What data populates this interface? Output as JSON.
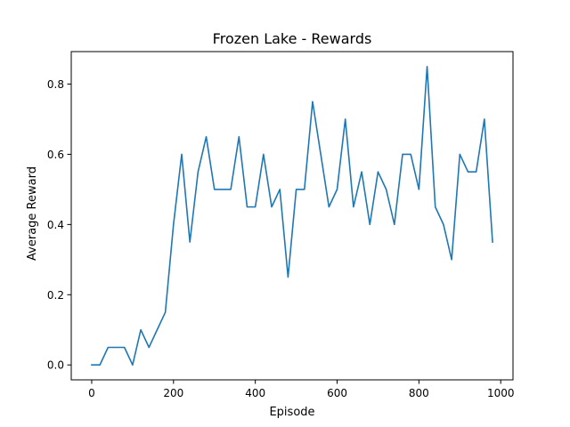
{
  "chart_data": {
    "type": "line",
    "title": "Frozen Lake - Rewards",
    "xlabel": "Episode",
    "ylabel": "Average Reward",
    "xlim": [
      -50,
      1030
    ],
    "ylim": [
      -0.0425,
      0.8925
    ],
    "xticks": [
      0,
      200,
      400,
      600,
      800,
      1000
    ],
    "xtick_labels": [
      "0",
      "200",
      "400",
      "600",
      "800",
      "1000"
    ],
    "yticks": [
      0.0,
      0.2,
      0.4,
      0.6,
      0.8
    ],
    "ytick_labels": [
      "0.0",
      "0.2",
      "0.4",
      "0.6",
      "0.8"
    ],
    "grid": false,
    "legend": "none",
    "series": [
      {
        "color": "#1f77b4",
        "x": [
          0,
          20,
          40,
          60,
          80,
          100,
          120,
          140,
          160,
          180,
          200,
          220,
          240,
          260,
          280,
          300,
          320,
          340,
          360,
          380,
          400,
          420,
          440,
          460,
          480,
          500,
          520,
          540,
          560,
          580,
          600,
          620,
          640,
          660,
          680,
          700,
          720,
          740,
          760,
          780,
          800,
          820,
          840,
          860,
          880,
          900,
          920,
          940,
          960,
          980
        ],
        "y": [
          0.0,
          0.0,
          0.05,
          0.05,
          0.05,
          0.0,
          0.1,
          0.05,
          0.1,
          0.15,
          0.4,
          0.6,
          0.35,
          0.55,
          0.65,
          0.5,
          0.5,
          0.5,
          0.65,
          0.45,
          0.45,
          0.6,
          0.45,
          0.5,
          0.25,
          0.5,
          0.5,
          0.75,
          0.6,
          0.45,
          0.5,
          0.7,
          0.45,
          0.55,
          0.4,
          0.55,
          0.5,
          0.4,
          0.6,
          0.6,
          0.5,
          0.85,
          0.45,
          0.4,
          0.3,
          0.6,
          0.55,
          0.55,
          0.7,
          0.35
        ]
      }
    ]
  }
}
